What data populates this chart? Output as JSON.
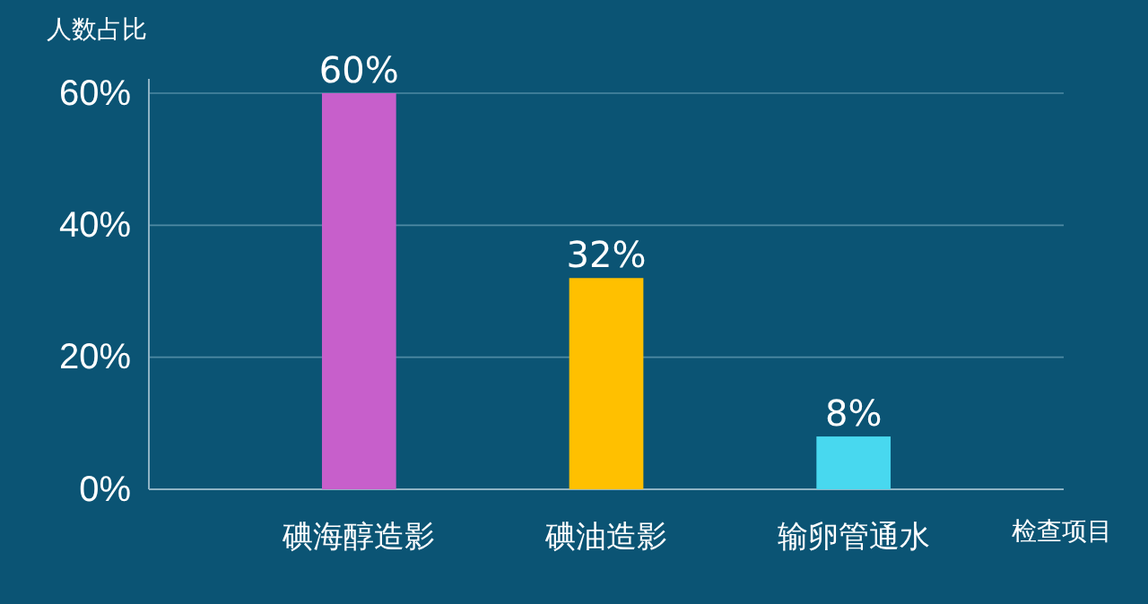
{
  "chart_data": {
    "type": "bar",
    "ylabel": "人数占比",
    "xlabel": "检查项目",
    "categories": [
      "碘海醇造影",
      "碘油造影",
      "输卵管通水"
    ],
    "values": [
      60,
      32,
      8
    ],
    "colors": [
      "#c75fcb",
      "#ffc000",
      "#48d8ef"
    ],
    "value_labels": [
      "60%",
      "32%",
      "8%"
    ],
    "ylim": [
      0,
      60
    ],
    "yticks": [
      {
        "value": 0,
        "label": "0%"
      },
      {
        "value": 20,
        "label": "20%"
      },
      {
        "value": 40,
        "label": "40%"
      },
      {
        "value": 60,
        "label": "60%"
      }
    ],
    "grid": "y"
  }
}
